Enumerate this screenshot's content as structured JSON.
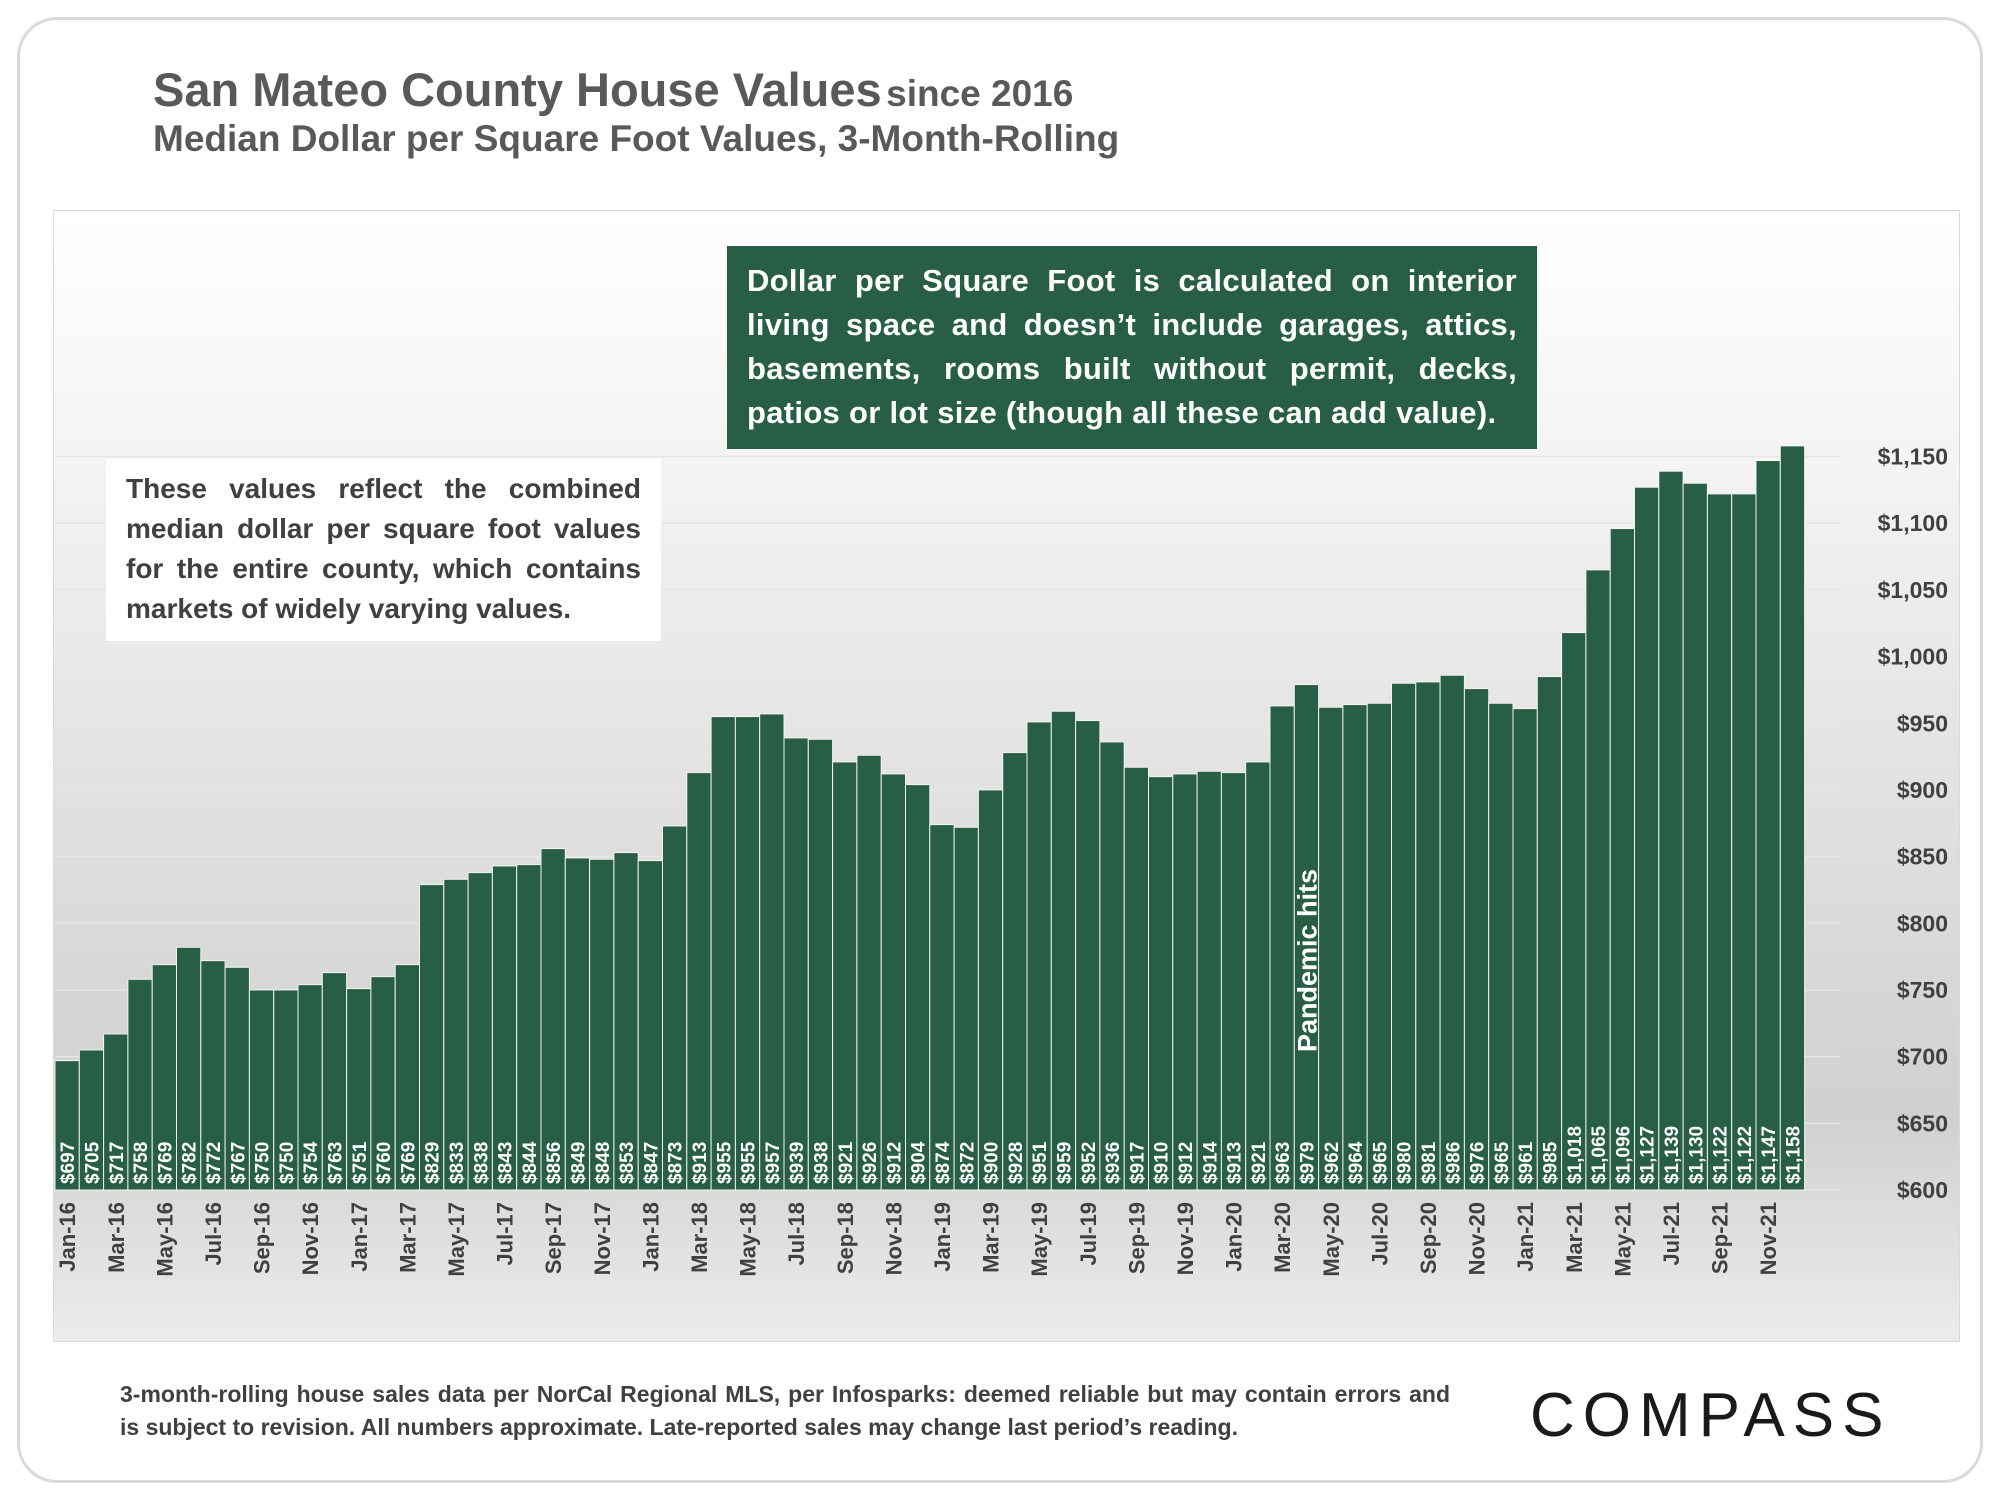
{
  "header": {
    "title": "San Mateo County House Values",
    "title_suffix": "since 2016",
    "subtitle": "Median Dollar per Square Foot Values, 3-Month-Rolling"
  },
  "notes": {
    "definition": "Dollar per Square Foot is calculated on interior living space and doesn’t include garages, attics, basements, rooms built without permit, decks, patios or lot size (though all these can add value).",
    "combined": "These values reflect the combined median dollar per square foot values for the entire county, which contains markets of widely varying values.",
    "pandemic": "Pandemic hits"
  },
  "footer": {
    "source": "3-month-rolling house sales data per NorCal Regional MLS, per Infosparks: deemed reliable but may contain errors and is subject to revision. All numbers approximate. Late-reported sales may change last period’s reading.",
    "brand": "COMPASS"
  },
  "colors": {
    "bar": "#275e45",
    "note_bg": "#275e45",
    "text": "#595959"
  },
  "chart_data": {
    "type": "bar",
    "ylim": [
      600,
      1175
    ],
    "y_ticks": [
      "$600",
      "$650",
      "$700",
      "$750",
      "$800",
      "$850",
      "$900",
      "$950",
      "$1,000",
      "$1,050",
      "$1,100",
      "$1,150"
    ],
    "y_tick_values": [
      600,
      650,
      700,
      750,
      800,
      850,
      900,
      950,
      1000,
      1050,
      1100,
      1150
    ],
    "y_axis_position": "right",
    "grid": true,
    "x_tick_labels": [
      "Jan-16",
      "Mar-16",
      "May-16",
      "Jul-16",
      "Sep-16",
      "Nov-16",
      "Jan-17",
      "Mar-17",
      "May-17",
      "Jul-17",
      "Sep-17",
      "Nov-17",
      "Jan-18",
      "Mar-18",
      "May-18",
      "Jul-18",
      "Sep-18",
      "Nov-18",
      "Jan-19",
      "Mar-19",
      "May-19",
      "Jul-19",
      "Sep-19",
      "Nov-19",
      "Jan-20",
      "Mar-20",
      "May-20",
      "Jul-20",
      "Sep-20",
      "Nov-20",
      "Jan-21",
      "Mar-21",
      "May-21",
      "Jul-21",
      "Sep-21",
      "Nov-21"
    ],
    "values": [
      697,
      705,
      717,
      758,
      769,
      782,
      772,
      767,
      750,
      750,
      754,
      763,
      751,
      760,
      769,
      829,
      833,
      838,
      843,
      844,
      856,
      849,
      848,
      853,
      847,
      873,
      913,
      955,
      955,
      957,
      939,
      938,
      921,
      926,
      912,
      904,
      874,
      872,
      900,
      928,
      951,
      959,
      952,
      936,
      917,
      910,
      912,
      914,
      913,
      921,
      963,
      979,
      962,
      964,
      965,
      980,
      981,
      986,
      976,
      965,
      961,
      985,
      1018,
      1065,
      1096,
      1127,
      1139,
      1130,
      1122,
      1122,
      1147,
      1158
    ],
    "value_labels": [
      "$697",
      "$705",
      "$717",
      "$758",
      "$769",
      "$782",
      "$772",
      "$767",
      "$750",
      "$750",
      "$754",
      "$763",
      "$751",
      "$760",
      "$769",
      "$829",
      "$833",
      "$838",
      "$843",
      "$844",
      "$856",
      "$849",
      "$848",
      "$853",
      "$847",
      "$873",
      "$913",
      "$955",
      "$955",
      "$957",
      "$939",
      "$938",
      "$921",
      "$926",
      "$912",
      "$904",
      "$874",
      "$872",
      "$900",
      "$928",
      "$951",
      "$959",
      "$952",
      "$936",
      "$917",
      "$910",
      "$912",
      "$914",
      "$913",
      "$921",
      "$963",
      "$979",
      "$962",
      "$964",
      "$965",
      "$980",
      "$981",
      "$986",
      "$976",
      "$965",
      "$961",
      "$985",
      "$1,018",
      "$1,065",
      "$1,096",
      "$1,127",
      "$1,139",
      "$1,130",
      "$1,122",
      "$1,122",
      "$1,147",
      "$1,158"
    ]
  }
}
